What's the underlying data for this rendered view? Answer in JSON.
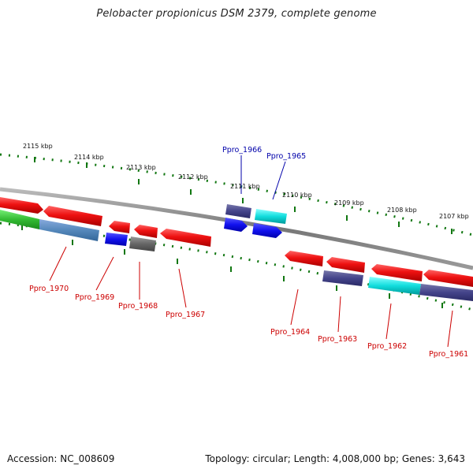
{
  "title": "Pelobacter propionicus DSM 2379, complete genome",
  "footer": {
    "accession": "Accession: NC_008609",
    "summary": "Topology: circular; Length: 4,008,000 bp; Genes: 3,643"
  },
  "kbp_labels": [
    "2115 kbp",
    "2114 kbp",
    "2113 kbp",
    "2112 kbp",
    "2111 kbp",
    "2110 kbp",
    "2109 kbp",
    "2108 kbp",
    "2107 kbp"
  ],
  "gene_labels": {
    "g1966": "Ppro_1966",
    "g1965": "Ppro_1965",
    "g1970": "Ppro_1970",
    "g1969": "Ppro_1969",
    "g1968": "Ppro_1968",
    "g1967": "Ppro_1967",
    "g1964": "Ppro_1964",
    "g1963": "Ppro_1963",
    "g1962": "Ppro_1962",
    "g1961": "Ppro_1961"
  },
  "colors": {
    "red": "#ee1111",
    "blue": "#1111ee",
    "navy": "#44448a",
    "cyan": "#11dddd",
    "gray": "#666666",
    "green": "#33bb33",
    "steel": "#5588bb",
    "tick": "#117711",
    "label_red": "#cc0000",
    "label_blue": "#0000aa"
  }
}
